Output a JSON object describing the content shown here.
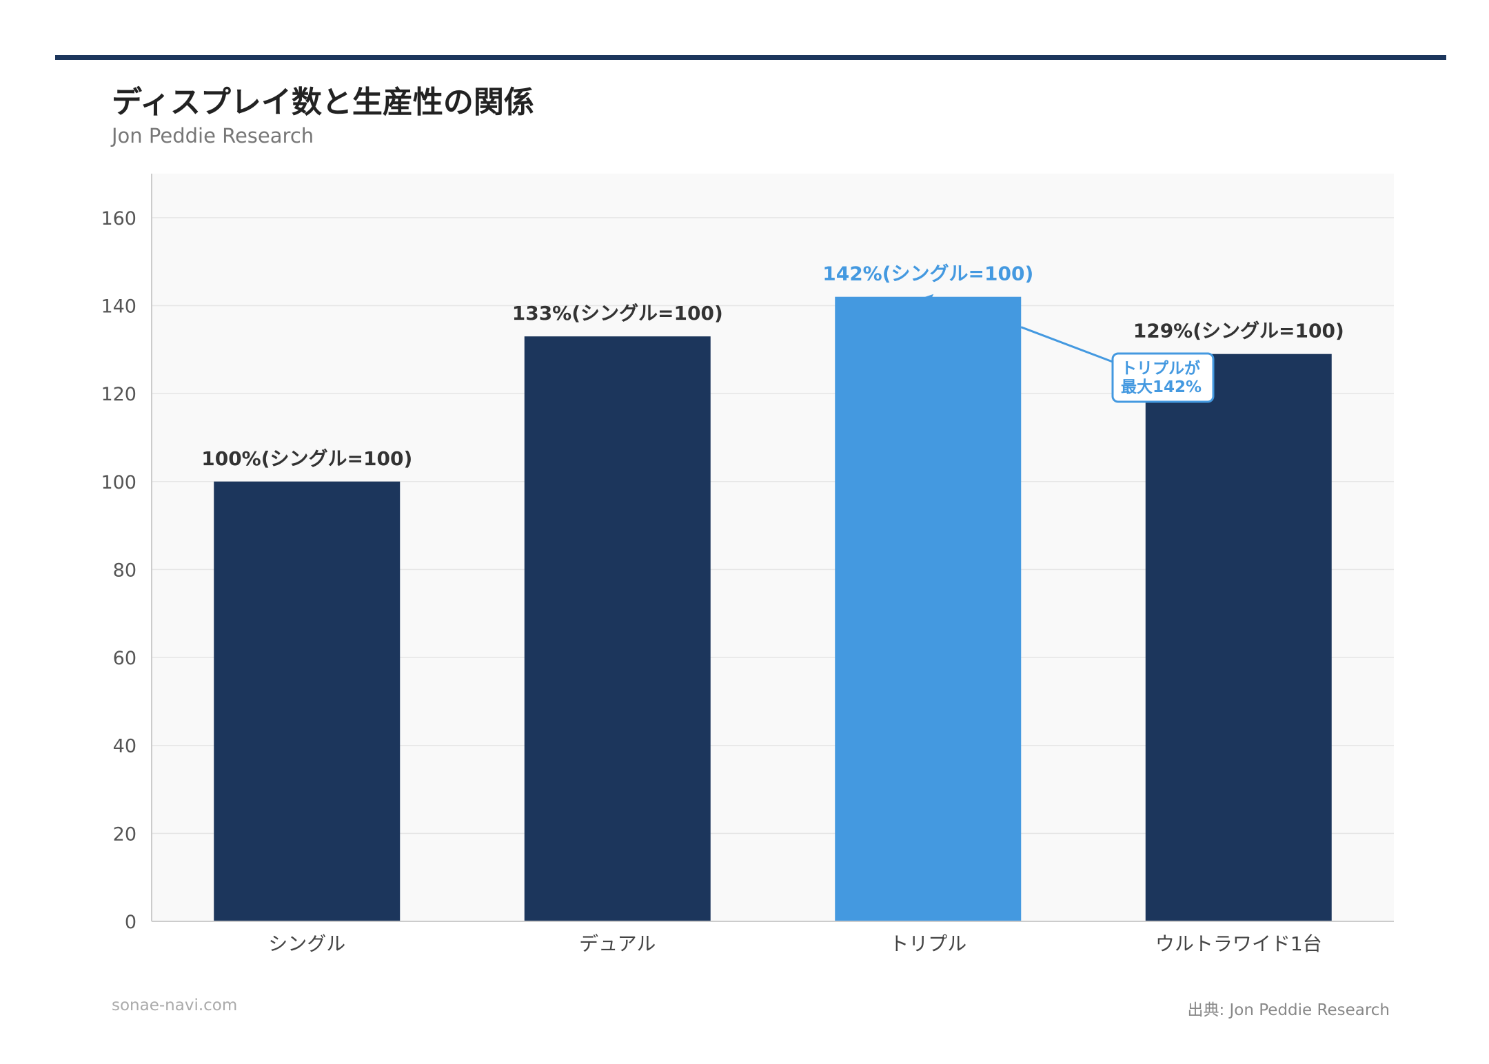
{
  "header": {
    "title": "ディスプレイ数と生産性の関係",
    "subtitle": "Jon Peddie Research"
  },
  "footer": {
    "site": "sonae-navi.com",
    "source": "出典: Jon Peddie Research"
  },
  "colors": {
    "bar": "#1c365c",
    "highlight": "#4499e0",
    "plot_bg": "#f9f9f9",
    "grid": "#e6e6e6"
  },
  "chart_data": {
    "type": "bar",
    "categories": [
      "シングル",
      "デュアル",
      "トリプル",
      "ウルトラワイド1台"
    ],
    "values": [
      100,
      133,
      142,
      129
    ],
    "data_labels": [
      "100%(シングル=100)",
      "133%(シングル=100)",
      "142%(シングル=100)",
      "129%(シングル=100)"
    ],
    "highlight_index": 2,
    "title": "ディスプレイ数と生産性の関係",
    "subtitle": "Jon Peddie Research",
    "xlabel": "",
    "ylabel": "",
    "ylim": [
      0,
      170
    ],
    "yticks": [
      0,
      20,
      40,
      60,
      80,
      100,
      120,
      140,
      160
    ],
    "grid": true,
    "legend": "none",
    "annotation": {
      "lines": [
        "トリプルが",
        "最大142%"
      ],
      "target_index": 2
    }
  }
}
